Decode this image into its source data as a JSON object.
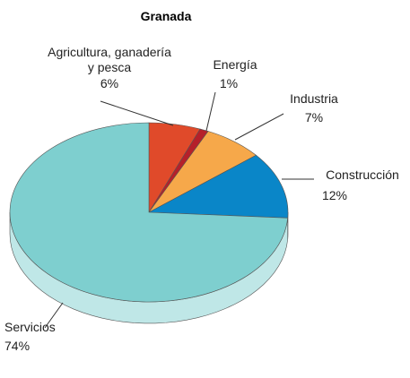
{
  "chart_data": {
    "type": "pie",
    "title": "Granada",
    "categories": [
      "Agricultura, ganadería y pesca",
      "Energía",
      "Industria",
      "Construcción",
      "Servicios"
    ],
    "values": [
      6,
      1,
      7,
      12,
      74
    ],
    "value_labels": [
      "6%",
      "1%",
      "7%",
      "12%",
      "74%"
    ],
    "colors": [
      "#e04a2a",
      "#b5202a",
      "#f6a84a",
      "#0a86c8",
      "#7ecfcf"
    ]
  }
}
